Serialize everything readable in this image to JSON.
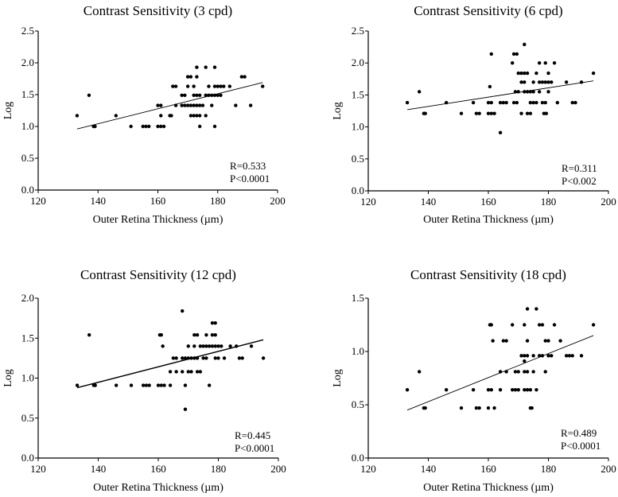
{
  "chart_data": [
    {
      "type": "scatter",
      "title": "Contrast Sensitivity (3 cpd)",
      "xlabel": "Outer Retina Thickness (µm)",
      "ylabel": "Log",
      "xlim": [
        120,
        200
      ],
      "ylim": [
        0,
        2.5
      ],
      "xticks": [
        "120",
        "140",
        "160",
        "180",
        "200"
      ],
      "yticks": [
        "0.0",
        "0.5",
        "1.0",
        "1.5",
        "2.0",
        "2.5"
      ],
      "annotation": [
        "R=0.533",
        "P<0.0001"
      ],
      "fit_line": [
        [
          133,
          0.96
        ],
        [
          195,
          1.69
        ]
      ],
      "points": [
        [
          133,
          1.17
        ],
        [
          137,
          1.49
        ],
        [
          138.5,
          1.0
        ],
        [
          139,
          1.0
        ],
        [
          146,
          1.17
        ],
        [
          151,
          1.0
        ],
        [
          155,
          1.0
        ],
        [
          156,
          1.0
        ],
        [
          157,
          1.0
        ],
        [
          160,
          1.0
        ],
        [
          161,
          1.0
        ],
        [
          162,
          1.0
        ],
        [
          160,
          1.33
        ],
        [
          161,
          1.33
        ],
        [
          161,
          1.17
        ],
        [
          164,
          1.17
        ],
        [
          165,
          1.63
        ],
        [
          166,
          1.63
        ],
        [
          166,
          1.33
        ],
        [
          164.5,
          1.17
        ],
        [
          168,
          1.49
        ],
        [
          169,
          1.49
        ],
        [
          168,
          1.33
        ],
        [
          169,
          1.33
        ],
        [
          170,
          1.33
        ],
        [
          171,
          1.33
        ],
        [
          170,
          1.63
        ],
        [
          170,
          1.78
        ],
        [
          171,
          1.78
        ],
        [
          171,
          1.17
        ],
        [
          172,
          1.17
        ],
        [
          173,
          1.17
        ],
        [
          172,
          1.63
        ],
        [
          172,
          1.49
        ],
        [
          173,
          1.49
        ],
        [
          174,
          1.49
        ],
        [
          172,
          1.33
        ],
        [
          173,
          1.33
        ],
        [
          174,
          1.33
        ],
        [
          175,
          1.33
        ],
        [
          173,
          1.78
        ],
        [
          173,
          1.93
        ],
        [
          174,
          1.17
        ],
        [
          174,
          1.0
        ],
        [
          176,
          1.93
        ],
        [
          176,
          1.17
        ],
        [
          176,
          1.49
        ],
        [
          177,
          1.49
        ],
        [
          177,
          1.63
        ],
        [
          178,
          1.49
        ],
        [
          178,
          1.33
        ],
        [
          179,
          1.49
        ],
        [
          179,
          1.63
        ],
        [
          180,
          1.63
        ],
        [
          180,
          1.49
        ],
        [
          179,
          1.93
        ],
        [
          179,
          1.0
        ],
        [
          181,
          1.49
        ],
        [
          181,
          1.63
        ],
        [
          182,
          1.63
        ],
        [
          184,
          1.63
        ],
        [
          186,
          1.33
        ],
        [
          188,
          1.78
        ],
        [
          189,
          1.78
        ],
        [
          191,
          1.33
        ],
        [
          195,
          1.63
        ]
      ]
    },
    {
      "type": "scatter",
      "title": "Contrast Sensitivity (6 cpd)",
      "xlabel": "Outer Retina Thickness (µm)",
      "ylabel": "Log",
      "xlim": [
        120,
        200
      ],
      "ylim": [
        0,
        2.5
      ],
      "xticks": [
        "120",
        "140",
        "160",
        "180",
        "200"
      ],
      "yticks": [
        "0.0",
        "0.5",
        "1.0",
        "1.5",
        "2.0",
        "2.5"
      ],
      "annotation": [
        "R=0.311",
        "P<0.002"
      ],
      "fit_line": [
        [
          133,
          1.27
        ],
        [
          195,
          1.72
        ]
      ],
      "points": [
        [
          133,
          1.38
        ],
        [
          137,
          1.55
        ],
        [
          138.5,
          1.21
        ],
        [
          139,
          1.21
        ],
        [
          146,
          1.38
        ],
        [
          151,
          1.21
        ],
        [
          155,
          1.38
        ],
        [
          156,
          1.21
        ],
        [
          157,
          1.21
        ],
        [
          160,
          1.21
        ],
        [
          160.5,
          1.63
        ],
        [
          161,
          2.14
        ],
        [
          160,
          1.38
        ],
        [
          161,
          1.38
        ],
        [
          161,
          1.21
        ],
        [
          162,
          1.21
        ],
        [
          164,
          1.38
        ],
        [
          164,
          0.91
        ],
        [
          165,
          1.38
        ],
        [
          166,
          1.38
        ],
        [
          168,
          2.0
        ],
        [
          168.5,
          2.14
        ],
        [
          169.5,
          2.14
        ],
        [
          168.5,
          1.38
        ],
        [
          169,
          1.55
        ],
        [
          170,
          1.55
        ],
        [
          169.5,
          1.38
        ],
        [
          170,
          1.84
        ],
        [
          171,
          1.84
        ],
        [
          172,
          1.84
        ],
        [
          173,
          1.84
        ],
        [
          171,
          1.7
        ],
        [
          172,
          1.7
        ],
        [
          172,
          2.29
        ],
        [
          172,
          1.55
        ],
        [
          173,
          1.55
        ],
        [
          174,
          1.55
        ],
        [
          175,
          1.55
        ],
        [
          171,
          1.21
        ],
        [
          173,
          1.21
        ],
        [
          174,
          1.21
        ],
        [
          174,
          1.38
        ],
        [
          175,
          1.38
        ],
        [
          175,
          1.7
        ],
        [
          176,
          1.84
        ],
        [
          176,
          1.38
        ],
        [
          177,
          2.0
        ],
        [
          177,
          1.7
        ],
        [
          178,
          1.7
        ],
        [
          177,
          1.55
        ],
        [
          178,
          1.38
        ],
        [
          179,
          1.38
        ],
        [
          179,
          1.7
        ],
        [
          180,
          1.7
        ],
        [
          179,
          2.0
        ],
        [
          178.5,
          1.21
        ],
        [
          179.3,
          1.21
        ],
        [
          180,
          1.55
        ],
        [
          180,
          1.84
        ],
        [
          181,
          1.7
        ],
        [
          182,
          2.0
        ],
        [
          183,
          1.38
        ],
        [
          186,
          1.7
        ],
        [
          188,
          1.38
        ],
        [
          189,
          1.38
        ],
        [
          191,
          1.7
        ],
        [
          195,
          1.84
        ]
      ]
    },
    {
      "type": "scatter",
      "title": "Contrast Sensitivity (12 cpd)",
      "xlabel": "Outer Retina Thickness (µm)",
      "ylabel": "Log",
      "xlim": [
        120,
        200
      ],
      "ylim": [
        0,
        2.0
      ],
      "xticks": [
        "120",
        "140",
        "160",
        "180",
        "200"
      ],
      "yticks": [
        "0.0",
        "0.5",
        "1.0",
        "1.5",
        "2.0"
      ],
      "annotation": [
        "R=0.445",
        "P<0.0001"
      ],
      "fit_line": [
        [
          133,
          0.88
        ],
        [
          195,
          1.48
        ]
      ],
      "points": [
        [
          133,
          0.91
        ],
        [
          137,
          1.54
        ],
        [
          138.5,
          0.91
        ],
        [
          139,
          0.91
        ],
        [
          146,
          0.91
        ],
        [
          151,
          0.91
        ],
        [
          155,
          0.91
        ],
        [
          156,
          0.91
        ],
        [
          157,
          0.91
        ],
        [
          160,
          0.91
        ],
        [
          161,
          0.91
        ],
        [
          162,
          0.91
        ],
        [
          160.5,
          1.54
        ],
        [
          161,
          1.54
        ],
        [
          161.5,
          1.4
        ],
        [
          164,
          0.91
        ],
        [
          164,
          1.08
        ],
        [
          165,
          1.25
        ],
        [
          166,
          1.25
        ],
        [
          166,
          1.08
        ],
        [
          168,
          1.84
        ],
        [
          168,
          1.25
        ],
        [
          169,
          1.25
        ],
        [
          168,
          1.08
        ],
        [
          169,
          0.61
        ],
        [
          169,
          0.91
        ],
        [
          170,
          1.25
        ],
        [
          170,
          1.4
        ],
        [
          170,
          1.08
        ],
        [
          171,
          1.08
        ],
        [
          171,
          1.25
        ],
        [
          172,
          1.25
        ],
        [
          172,
          1.4
        ],
        [
          172,
          1.54
        ],
        [
          173,
          1.54
        ],
        [
          173,
          1.25
        ],
        [
          173,
          1.08
        ],
        [
          174,
          1.08
        ],
        [
          174,
          1.4
        ],
        [
          175,
          1.4
        ],
        [
          175,
          1.25
        ],
        [
          176,
          1.54
        ],
        [
          176,
          1.25
        ],
        [
          176,
          1.4
        ],
        [
          177,
          1.4
        ],
        [
          177,
          0.91
        ],
        [
          178,
          1.4
        ],
        [
          178,
          1.69
        ],
        [
          179,
          1.69
        ],
        [
          179,
          1.54
        ],
        [
          178,
          1.54
        ],
        [
          179,
          1.4
        ],
        [
          180,
          1.4
        ],
        [
          179,
          1.25
        ],
        [
          180,
          1.25
        ],
        [
          181,
          1.4
        ],
        [
          182,
          1.25
        ],
        [
          184,
          1.4
        ],
        [
          186,
          1.4
        ],
        [
          187,
          1.25
        ],
        [
          188,
          1.25
        ],
        [
          191,
          1.4
        ],
        [
          195,
          1.25
        ]
      ]
    },
    {
      "type": "scatter",
      "title": "Contrast Sensitivity (18 cpd)",
      "xlabel": "Outer Retina Thickness (µm)",
      "ylabel": "Log",
      "xlim": [
        120,
        200
      ],
      "ylim": [
        0,
        1.5
      ],
      "xticks": [
        "120",
        "140",
        "160",
        "180",
        "200"
      ],
      "yticks": [
        "0.0",
        "0.5",
        "1.0",
        "1.5"
      ],
      "annotation": [
        "R=0.489",
        "P<0.0001"
      ],
      "fit_line": [
        [
          133,
          0.45
        ],
        [
          195,
          1.15
        ]
      ],
      "points": [
        [
          133,
          0.64
        ],
        [
          137,
          0.81
        ],
        [
          138.5,
          0.47
        ],
        [
          139,
          0.47
        ],
        [
          146,
          0.64
        ],
        [
          151,
          0.47
        ],
        [
          155,
          0.64
        ],
        [
          156,
          0.47
        ],
        [
          157,
          0.47
        ],
        [
          160,
          0.47
        ],
        [
          160,
          0.64
        ],
        [
          161,
          0.64
        ],
        [
          162,
          0.47
        ],
        [
          160.5,
          1.25
        ],
        [
          161,
          1.25
        ],
        [
          161.5,
          1.1
        ],
        [
          164,
          0.64
        ],
        [
          164,
          0.81
        ],
        [
          165,
          1.1
        ],
        [
          166,
          1.1
        ],
        [
          166,
          0.81
        ],
        [
          168,
          1.25
        ],
        [
          168,
          0.64
        ],
        [
          169,
          0.81
        ],
        [
          170,
          0.81
        ],
        [
          169,
          0.64
        ],
        [
          170,
          0.64
        ],
        [
          171,
          0.96
        ],
        [
          172,
          0.96
        ],
        [
          172,
          0.91
        ],
        [
          172,
          1.25
        ],
        [
          172,
          0.81
        ],
        [
          172,
          0.64
        ],
        [
          173,
          1.4
        ],
        [
          173,
          1.1
        ],
        [
          173,
          0.96
        ],
        [
          173,
          0.81
        ],
        [
          173,
          0.64
        ],
        [
          174,
          0.64
        ],
        [
          174,
          0.47
        ],
        [
          174.5,
          0.47
        ],
        [
          175,
          0.96
        ],
        [
          175,
          0.81
        ],
        [
          176,
          1.4
        ],
        [
          176,
          0.64
        ],
        [
          177,
          0.96
        ],
        [
          177,
          1.25
        ],
        [
          178,
          1.25
        ],
        [
          178,
          0.96
        ],
        [
          179,
          1.1
        ],
        [
          180,
          1.1
        ],
        [
          179,
          0.81
        ],
        [
          180,
          0.96
        ],
        [
          181,
          0.96
        ],
        [
          182,
          1.25
        ],
        [
          184,
          1.1
        ],
        [
          186,
          0.96
        ],
        [
          187,
          0.96
        ],
        [
          188,
          0.96
        ],
        [
          191,
          0.96
        ],
        [
          195,
          1.25
        ]
      ]
    }
  ]
}
